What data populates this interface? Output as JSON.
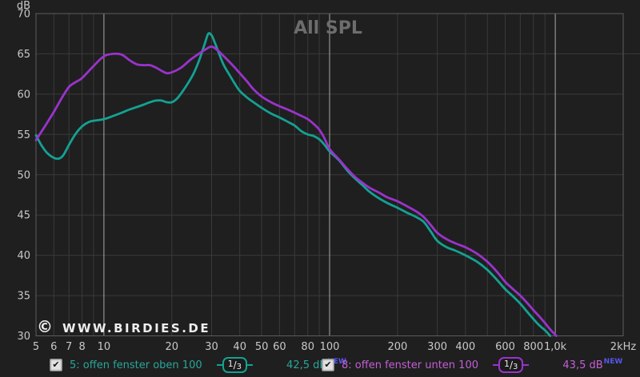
{
  "title": "All SPL",
  "watermark": {
    "copyright": "©",
    "text": "WWW.BIRDIES.DE",
    "color": "#eeeeee"
  },
  "colors": {
    "background": "#1f1f1f",
    "grid_minor": "#3a3a3a",
    "grid_major": "#aaaaaa",
    "frame": "#5c5c5c",
    "tick_label": "#c8c8c8",
    "title": "#6d6d6d"
  },
  "chart_data": {
    "type": "line",
    "title": "All SPL",
    "x_axis": {
      "scale": "log",
      "min": 5,
      "max": 2000,
      "unit": "Hz",
      "tick_labels": [
        {
          "f": 5,
          "label": "5"
        },
        {
          "f": 6,
          "label": "6"
        },
        {
          "f": 7,
          "label": "7"
        },
        {
          "f": 8,
          "label": "8"
        },
        {
          "f": 10,
          "label": "10"
        },
        {
          "f": 20,
          "label": "20"
        },
        {
          "f": 30,
          "label": "30"
        },
        {
          "f": 40,
          "label": "40"
        },
        {
          "f": 50,
          "label": "50"
        },
        {
          "f": 60,
          "label": "60"
        },
        {
          "f": 80,
          "label": "80"
        },
        {
          "f": 100,
          "label": "100"
        },
        {
          "f": 200,
          "label": "200"
        },
        {
          "f": 300,
          "label": "300"
        },
        {
          "f": 400,
          "label": "400"
        },
        {
          "f": 600,
          "label": "600"
        },
        {
          "f": 800,
          "label": "800"
        },
        {
          "f": 1000,
          "label": "1,0k"
        },
        {
          "f": 2000,
          "label": "2kHz"
        }
      ],
      "minor_gridline_freqs": [
        6,
        7,
        8,
        9,
        20,
        30,
        40,
        50,
        60,
        70,
        80,
        90,
        200,
        300,
        400,
        500,
        600,
        700,
        800,
        900
      ],
      "major_gridline_freqs": [
        10,
        100,
        1000
      ]
    },
    "y_axis": {
      "label": "dB",
      "min": 30,
      "max": 70,
      "step": 5,
      "tick_labels": [
        "70",
        "65",
        "60",
        "55",
        "50",
        "45",
        "40",
        "35",
        "30"
      ]
    },
    "grid": "on",
    "legend_position": "bottom",
    "series": [
      {
        "name": "5: offen fenster oben 100",
        "color": "#14a192",
        "points": [
          [
            5,
            54.9
          ],
          [
            5.3,
            53.6
          ],
          [
            5.6,
            52.7
          ],
          [
            6,
            52.1
          ],
          [
            6.3,
            52.0
          ],
          [
            6.6,
            52.4
          ],
          [
            7,
            53.7
          ],
          [
            7.5,
            55.1
          ],
          [
            8,
            56.0
          ],
          [
            8.5,
            56.5
          ],
          [
            9,
            56.7
          ],
          [
            10,
            56.9
          ],
          [
            11,
            57.3
          ],
          [
            12,
            57.7
          ],
          [
            13,
            58.1
          ],
          [
            14,
            58.4
          ],
          [
            15,
            58.7
          ],
          [
            16,
            59.0
          ],
          [
            17,
            59.2
          ],
          [
            18,
            59.2
          ],
          [
            19,
            59.0
          ],
          [
            20,
            59.0
          ],
          [
            21,
            59.4
          ],
          [
            22,
            60.1
          ],
          [
            23.5,
            61.3
          ],
          [
            25,
            62.6
          ],
          [
            26.5,
            64.3
          ],
          [
            28,
            66.3
          ],
          [
            29,
            67.5
          ],
          [
            30,
            67.3
          ],
          [
            31,
            66.4
          ],
          [
            32.5,
            64.9
          ],
          [
            34,
            63.6
          ],
          [
            36,
            62.4
          ],
          [
            38,
            61.3
          ],
          [
            40,
            60.4
          ],
          [
            43,
            59.6
          ],
          [
            46,
            59.0
          ],
          [
            50,
            58.3
          ],
          [
            55,
            57.6
          ],
          [
            60,
            57.1
          ],
          [
            65,
            56.6
          ],
          [
            70,
            56.1
          ],
          [
            75,
            55.4
          ],
          [
            80,
            55.0
          ],
          [
            85,
            54.8
          ],
          [
            90,
            54.4
          ],
          [
            95,
            53.7
          ],
          [
            100,
            52.9
          ],
          [
            110,
            51.8
          ],
          [
            120,
            50.5
          ],
          [
            130,
            49.5
          ],
          [
            140,
            48.7
          ],
          [
            150,
            47.9
          ],
          [
            165,
            47.1
          ],
          [
            180,
            46.5
          ],
          [
            200,
            45.9
          ],
          [
            220,
            45.3
          ],
          [
            240,
            44.8
          ],
          [
            260,
            44.2
          ],
          [
            280,
            43.0
          ],
          [
            300,
            41.8
          ],
          [
            330,
            41.0
          ],
          [
            360,
            40.6
          ],
          [
            400,
            40.0
          ],
          [
            450,
            39.2
          ],
          [
            500,
            38.2
          ],
          [
            550,
            37.0
          ],
          [
            600,
            35.8
          ],
          [
            650,
            34.9
          ],
          [
            700,
            34.0
          ],
          [
            750,
            33.0
          ],
          [
            800,
            32.1
          ],
          [
            850,
            31.3
          ],
          [
            900,
            30.7
          ],
          [
            950,
            30.0
          ]
        ]
      },
      {
        "name": "8: offen fenster unten 100",
        "color": "#9a33cc",
        "points": [
          [
            5,
            54.3
          ],
          [
            5.5,
            56.1
          ],
          [
            6,
            57.8
          ],
          [
            6.5,
            59.5
          ],
          [
            7,
            60.9
          ],
          [
            7.5,
            61.5
          ],
          [
            8,
            62.0
          ],
          [
            9,
            63.5
          ],
          [
            10,
            64.7
          ],
          [
            11,
            65.0
          ],
          [
            12,
            64.9
          ],
          [
            13,
            64.2
          ],
          [
            14,
            63.7
          ],
          [
            15,
            63.6
          ],
          [
            16,
            63.6
          ],
          [
            17,
            63.3
          ],
          [
            18,
            62.9
          ],
          [
            19,
            62.6
          ],
          [
            20,
            62.7
          ],
          [
            22,
            63.3
          ],
          [
            24,
            64.2
          ],
          [
            26,
            64.9
          ],
          [
            28,
            65.5
          ],
          [
            30,
            65.9
          ],
          [
            32,
            65.4
          ],
          [
            34,
            64.7
          ],
          [
            36,
            64.0
          ],
          [
            38,
            63.3
          ],
          [
            40,
            62.6
          ],
          [
            43,
            61.6
          ],
          [
            46,
            60.6
          ],
          [
            50,
            59.7
          ],
          [
            55,
            59.0
          ],
          [
            60,
            58.5
          ],
          [
            65,
            58.1
          ],
          [
            70,
            57.7
          ],
          [
            75,
            57.3
          ],
          [
            80,
            56.9
          ],
          [
            85,
            56.3
          ],
          [
            90,
            55.6
          ],
          [
            95,
            54.5
          ],
          [
            100,
            53.2
          ],
          [
            110,
            51.9
          ],
          [
            120,
            50.7
          ],
          [
            130,
            49.7
          ],
          [
            140,
            49.0
          ],
          [
            150,
            48.4
          ],
          [
            165,
            47.8
          ],
          [
            180,
            47.2
          ],
          [
            200,
            46.7
          ],
          [
            220,
            46.1
          ],
          [
            240,
            45.5
          ],
          [
            260,
            44.8
          ],
          [
            280,
            43.8
          ],
          [
            300,
            42.8
          ],
          [
            330,
            42.0
          ],
          [
            360,
            41.5
          ],
          [
            400,
            41.0
          ],
          [
            450,
            40.2
          ],
          [
            500,
            39.2
          ],
          [
            550,
            38.0
          ],
          [
            600,
            36.7
          ],
          [
            650,
            35.8
          ],
          [
            700,
            35.0
          ],
          [
            750,
            34.1
          ],
          [
            800,
            33.2
          ],
          [
            850,
            32.4
          ],
          [
            900,
            31.6
          ],
          [
            950,
            30.8
          ],
          [
            1010,
            30.0
          ]
        ]
      }
    ]
  },
  "legend": [
    {
      "checked": true,
      "check_glyph": "✔",
      "label": "5: offen fenster oben 100",
      "text_color": "#27a79a",
      "accent": "#14a192",
      "sm_num": "1",
      "sm_slash": "/",
      "sm_den": "3",
      "value": "42,5 dB",
      "badge": "NEW",
      "badge_color": "#5656f0"
    },
    {
      "checked": true,
      "check_glyph": "✔",
      "label": "8: offen fenster unten 100",
      "text_color": "#c45fd6",
      "accent": "#9a33cc",
      "sm_num": "1",
      "sm_slash": "/",
      "sm_den": "3",
      "value": "43,5 dB",
      "badge": "NEW",
      "badge_color": "#5656f0"
    }
  ]
}
